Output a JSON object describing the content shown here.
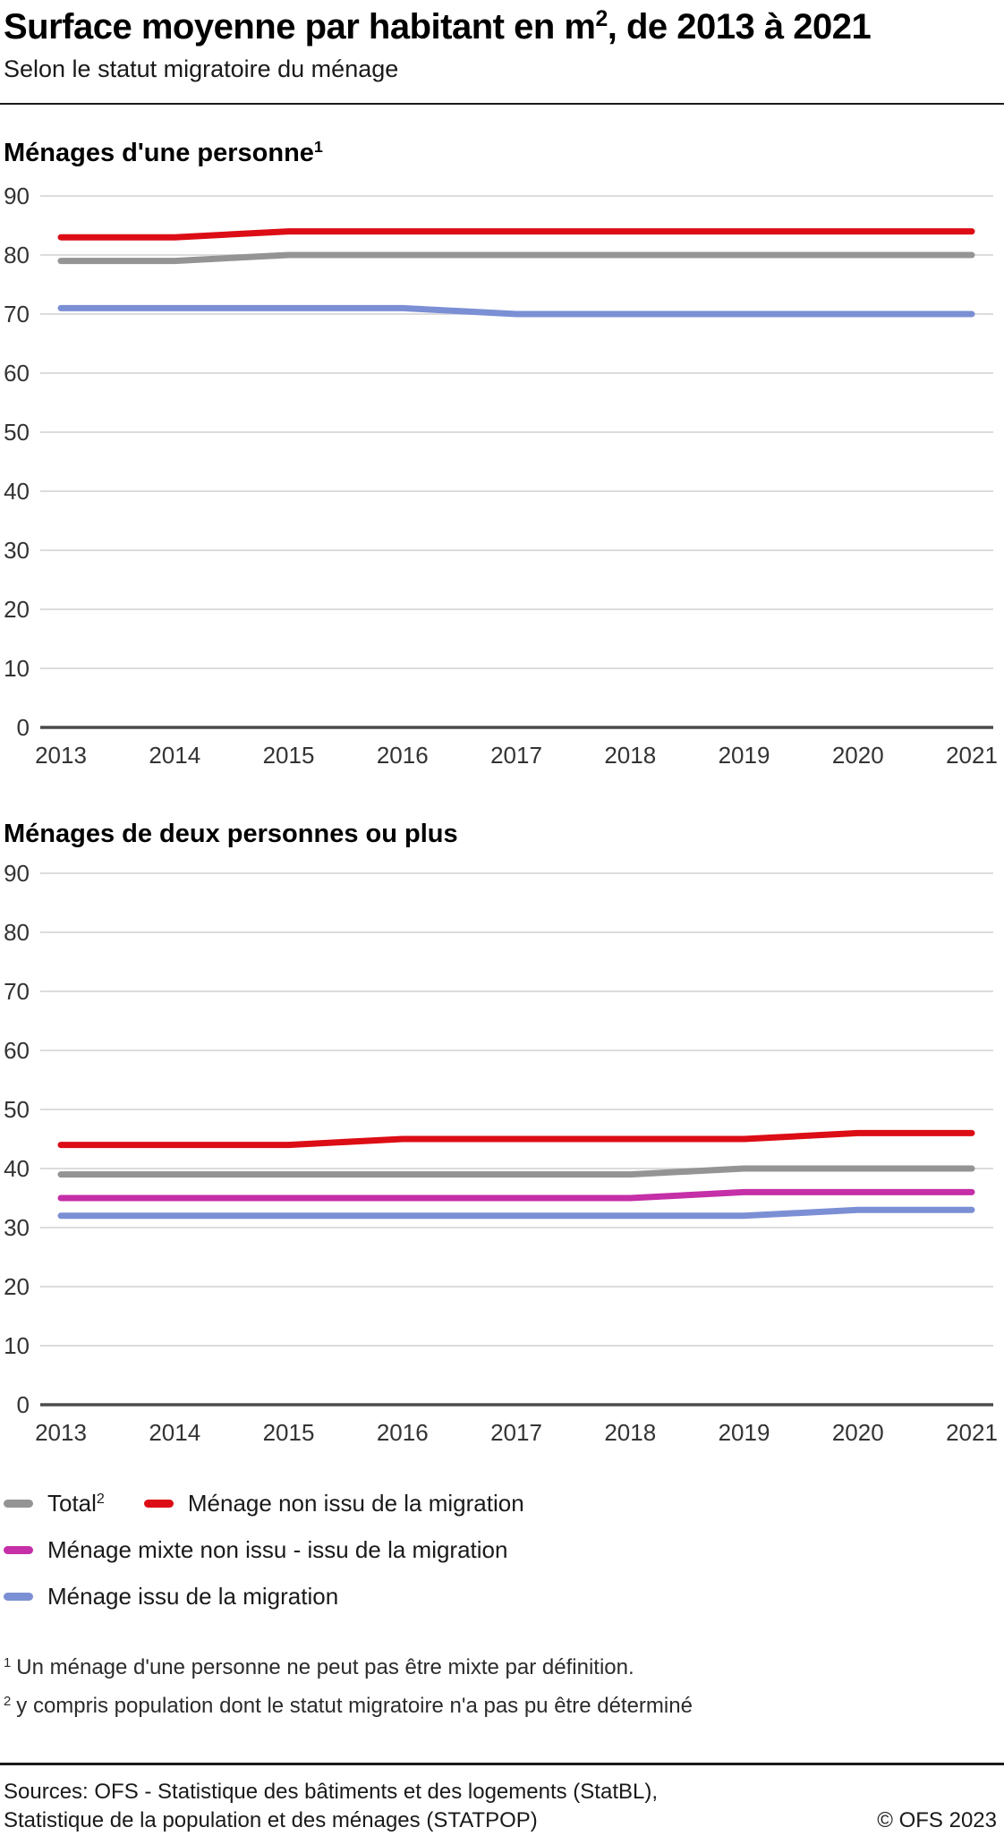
{
  "header": {
    "title_pre": "Surface moyenne par habitant en m",
    "title_sup": "2",
    "title_post": ", de 2013 à 2021",
    "subtitle": "Selon le statut migratoire du ménage"
  },
  "chart_data": [
    {
      "type": "line",
      "title": "Ménages d'une personne",
      "title_sup": "1",
      "x": [
        "2013",
        "2014",
        "2015",
        "2016",
        "2017",
        "2018",
        "2019",
        "2020",
        "2021"
      ],
      "xlabel": "",
      "ylabel": "",
      "ylim": [
        0,
        90
      ],
      "ytick_step": 10,
      "grid": true,
      "series": [
        {
          "name": "Total",
          "color": "#949494",
          "values": [
            79,
            79,
            80,
            80,
            80,
            80,
            80,
            80,
            80
          ]
        },
        {
          "name": "Ménage non issu de la migration",
          "color": "#dc0d15",
          "values": [
            83,
            83,
            84,
            84,
            84,
            84,
            84,
            84,
            84
          ]
        },
        {
          "name": "Ménage issu de la migration",
          "color": "#7b8fd4",
          "values": [
            71,
            71,
            71,
            71,
            70,
            70,
            70,
            70,
            70
          ]
        }
      ]
    },
    {
      "type": "line",
      "title": "Ménages de deux personnes ou plus",
      "title_sup": "",
      "x": [
        "2013",
        "2014",
        "2015",
        "2016",
        "2017",
        "2018",
        "2019",
        "2020",
        "2021"
      ],
      "xlabel": "",
      "ylabel": "",
      "ylim": [
        0,
        90
      ],
      "ytick_step": 10,
      "grid": true,
      "series": [
        {
          "name": "Total",
          "color": "#949494",
          "values": [
            39,
            39,
            39,
            39,
            39,
            39,
            40,
            40,
            40
          ]
        },
        {
          "name": "Ménage non issu de la migration",
          "color": "#dc0d15",
          "values": [
            44,
            44,
            44,
            45,
            45,
            45,
            45,
            46,
            46
          ]
        },
        {
          "name": "Ménage mixte non issu - issu de la migration",
          "color": "#c52fa7",
          "values": [
            35,
            35,
            35,
            35,
            35,
            35,
            36,
            36,
            36
          ]
        },
        {
          "name": "Ménage issu de la migration",
          "color": "#7b8fd4",
          "values": [
            32,
            32,
            32,
            32,
            32,
            32,
            32,
            33,
            33
          ]
        }
      ]
    }
  ],
  "legend": {
    "position": "bottom",
    "items": [
      {
        "label": "Total",
        "sup": "2",
        "color": "#949494"
      },
      {
        "label": "Ménage non issu de la migration",
        "sup": "",
        "color": "#dc0d15"
      },
      {
        "label": "Ménage mixte non issu - issu de la migration",
        "sup": "",
        "color": "#c52fa7"
      },
      {
        "label": "Ménage issu de la migration",
        "sup": "",
        "color": "#7b8fd4"
      }
    ]
  },
  "footnotes": [
    {
      "marker": "1",
      "text": "Un ménage d'une personne ne peut pas être mixte par définition."
    },
    {
      "marker": "2",
      "text": "y compris population dont le statut migratoire n'a pas pu être déterminé"
    }
  ],
  "footer": {
    "source_line1": "Sources: OFS - Statistique des bâtiments et des logements (StatBL),",
    "source_line2": "Statistique de la population et des ménages (STATPOP)",
    "copyright": "© OFS 2023"
  },
  "style": {
    "gridline_color": "#dcdcdc",
    "axis_zero_color": "#4b4b4b",
    "tick_label_color": "#333333"
  }
}
